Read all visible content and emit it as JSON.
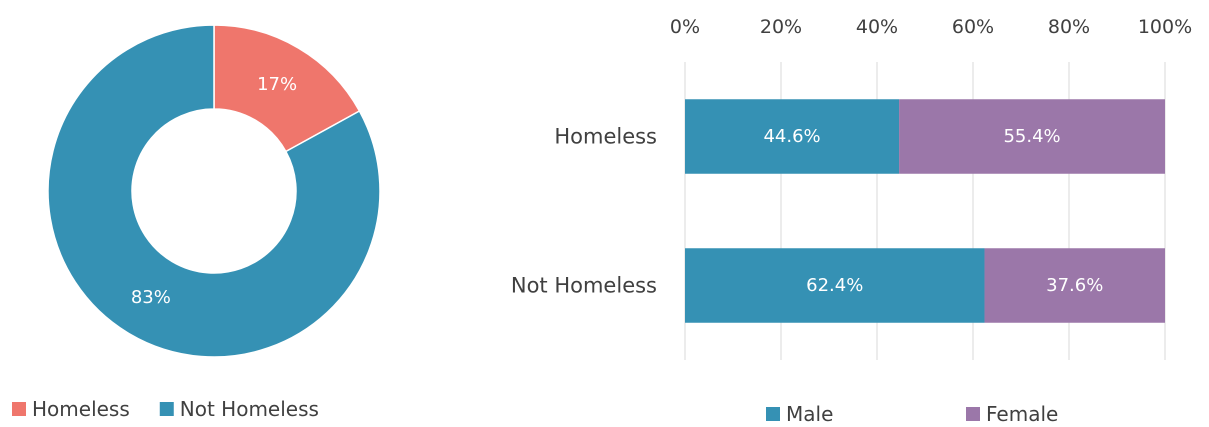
{
  "chart_data": [
    {
      "type": "pie",
      "donut": true,
      "categories": [
        "Homeless",
        "Not Homeless"
      ],
      "values": [
        17,
        83
      ],
      "data_labels": [
        "17%",
        "83%"
      ],
      "colors": [
        "#ef766c",
        "#3591b4"
      ],
      "legend": {
        "position": "bottom",
        "entries": [
          "Homeless",
          "Not Homeless"
        ]
      }
    },
    {
      "type": "bar",
      "orientation": "horizontal",
      "stacked": "percent",
      "categories": [
        "Homeless",
        "Not Homeless"
      ],
      "series": [
        {
          "name": "Male",
          "values": [
            44.6,
            62.4
          ],
          "labels": [
            "44.6%",
            "62.4%"
          ],
          "color": "#3591b4"
        },
        {
          "name": "Female",
          "values": [
            55.4,
            37.6
          ],
          "labels": [
            "55.4%",
            "37.6%"
          ],
          "color": "#9b77a9"
        }
      ],
      "xlim": [
        0,
        100
      ],
      "x_ticks": [
        "0%",
        "20%",
        "40%",
        "60%",
        "80%",
        "100%"
      ],
      "grid": true,
      "legend": {
        "position": "bottom",
        "entries": [
          "Male",
          "Female"
        ]
      }
    }
  ]
}
